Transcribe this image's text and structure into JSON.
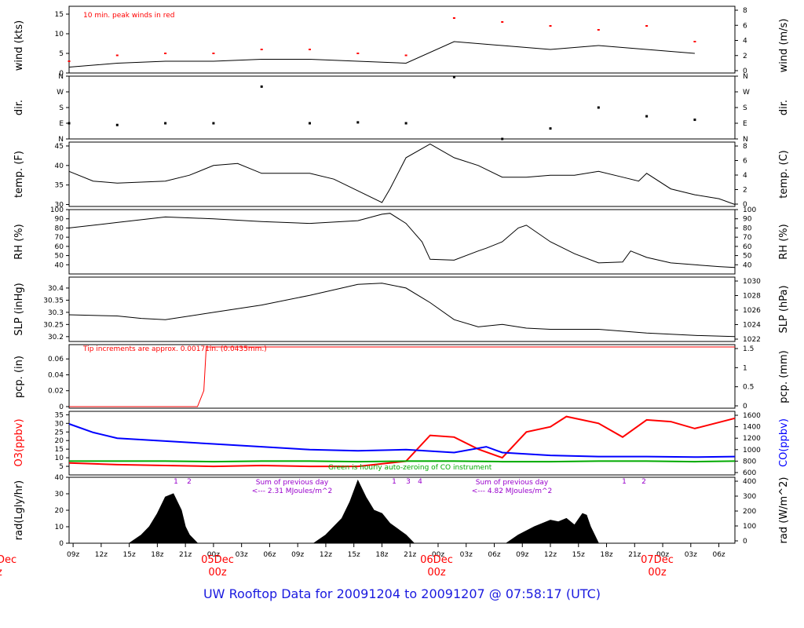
{
  "footer": {
    "title": "UW Rooftop Data for 20091204  to  20091207 @ 07:58:17  (UTC)"
  },
  "chart_data": [
    {
      "type": "line",
      "panel": "wind",
      "ylabel": "wind (kts)",
      "ylabel_right": "wind (m/s)",
      "ylim": [
        0,
        17
      ],
      "yticks": [
        0,
        5,
        10,
        15
      ],
      "yticks_right": [
        "0",
        "2",
        "4",
        "6",
        "8"
      ],
      "annotation": "10 min. peak winds in red",
      "series": [
        {
          "name": "wind",
          "color": "#000000",
          "x": [
            0,
            6,
            12,
            18,
            24,
            30,
            36,
            42,
            48,
            54,
            60,
            66,
            72,
            78
          ],
          "y": [
            1.5,
            2.5,
            3,
            3,
            3.5,
            3.5,
            3,
            2.5,
            8,
            7,
            6,
            7,
            6,
            5
          ]
        },
        {
          "name": "10 min. peak winds",
          "color": "#ff0000",
          "style": "dots",
          "x": [
            0,
            6,
            12,
            18,
            24,
            30,
            36,
            42,
            48,
            54,
            60,
            66,
            72,
            78
          ],
          "y": [
            3,
            4.5,
            5,
            5,
            6,
            6,
            5,
            4.5,
            14,
            13,
            12,
            11,
            12,
            8
          ]
        }
      ]
    },
    {
      "type": "scatter",
      "panel": "dir",
      "ylabel": "dir.",
      "ylabel_right": "dir.",
      "yticks": [
        "N",
        "E",
        "S",
        "W",
        "N"
      ],
      "series": [
        {
          "name": "direction",
          "color": "#000000",
          "x": [
            0,
            6,
            12,
            18,
            24,
            30,
            36,
            42,
            48,
            54,
            60,
            66,
            72,
            78
          ],
          "y": [
            90,
            80,
            90,
            90,
            300,
            90,
            95,
            90,
            355,
            0,
            60,
            180,
            130,
            110
          ]
        }
      ]
    },
    {
      "type": "line",
      "panel": "temp",
      "ylabel": "temp. (F)",
      "ylabel_right": "temp. (C)",
      "ylim": [
        29.5,
        46
      ],
      "yticks": [
        30,
        35,
        40,
        45
      ],
      "yticks_right": [
        "0",
        "2",
        "4",
        "6",
        "8"
      ],
      "series": [
        {
          "name": "temperature",
          "color": "#000000",
          "x": [
            0,
            3,
            6,
            12,
            15,
            18,
            21,
            24,
            30,
            33,
            36,
            39,
            40,
            42,
            45,
            48,
            51,
            54,
            57,
            60,
            63,
            66,
            69,
            71,
            72,
            75,
            78,
            81,
            83
          ],
          "y": [
            38.5,
            36,
            35.5,
            36,
            37.5,
            40,
            40.5,
            38,
            38,
            36.5,
            33.5,
            30.5,
            34,
            42,
            45.5,
            42,
            40,
            37,
            37,
            37.5,
            37.5,
            38.5,
            37,
            36,
            38,
            34,
            32.5,
            31.5,
            30
          ]
        }
      ]
    },
    {
      "type": "line",
      "panel": "RH",
      "ylabel": "RH (%)",
      "ylabel_right": "RH (%)",
      "ylim": [
        30,
        100
      ],
      "yticks": [
        40,
        50,
        60,
        70,
        80,
        90,
        100
      ],
      "series": [
        {
          "name": "relative humidity",
          "color": "#000000",
          "x": [
            0,
            6,
            12,
            18,
            24,
            30,
            36,
            39,
            40,
            42,
            44,
            45,
            48,
            51,
            52,
            54,
            56,
            57,
            60,
            63,
            66,
            69,
            70,
            72,
            75,
            78,
            81,
            83
          ],
          "y": [
            80,
            86,
            92,
            90,
            87,
            85,
            88,
            95,
            96,
            85,
            65,
            46,
            45,
            55,
            58,
            65,
            80,
            83,
            65,
            52,
            42,
            43,
            55,
            48,
            42,
            40,
            38,
            37
          ]
        }
      ]
    },
    {
      "type": "line",
      "panel": "SLP",
      "ylabel": "SLP (inHg)",
      "ylabel_right": "SLP (hPa)",
      "ylim": [
        30.18,
        30.445
      ],
      "yticks": [
        30.2,
        30.25,
        30.3,
        30.35,
        30.4
      ],
      "yticks_right": [
        "1022",
        "1024",
        "1026",
        "1028",
        "1030"
      ],
      "series": [
        {
          "name": "sea level pressure",
          "color": "#000000",
          "x": [
            0,
            6,
            9,
            12,
            18,
            24,
            30,
            36,
            39,
            42,
            45,
            48,
            51,
            54,
            57,
            60,
            66,
            72,
            78,
            83
          ],
          "y": [
            30.29,
            30.285,
            30.275,
            30.27,
            30.3,
            30.33,
            30.37,
            30.415,
            30.42,
            30.4,
            30.34,
            30.27,
            30.24,
            30.25,
            30.235,
            30.23,
            30.23,
            30.215,
            30.205,
            30.2
          ]
        }
      ]
    },
    {
      "type": "line",
      "panel": "precip",
      "ylabel": "pcp. (in)",
      "ylabel_right": "pcp. (mm)",
      "ylim": [
        -0.002,
        0.078
      ],
      "yticks": [
        0,
        0.02,
        0.04,
        0.06
      ],
      "yticks_right": [
        "0",
        "0.5",
        "1",
        "1.5"
      ],
      "annotation": "Tip increments are approx. 0.00171in. (0.0435mm.)",
      "series": [
        {
          "name": "accumulated precipitation",
          "color": "#ff0000",
          "x": [
            0,
            16,
            16.8,
            17.1,
            83
          ],
          "y": [
            0,
            0,
            0.02,
            0.075,
            0.075
          ]
        }
      ]
    },
    {
      "type": "line",
      "panel": "O3-CO",
      "ylabel": "O3(ppbv)",
      "ylabel_right": "CO(ppbv)",
      "ylim": [
        0,
        37
      ],
      "yticks": [
        5,
        10,
        15,
        20,
        25,
        30,
        35
      ],
      "yticks_right": [
        "600",
        "800",
        "1000",
        "1200",
        "1400",
        "1600"
      ],
      "annotation": "Green is hourly auto-zeroing of CO instrument",
      "series": [
        {
          "name": "O3",
          "color": "#ff0000",
          "x": [
            0,
            6,
            12,
            18,
            24,
            30,
            36,
            42,
            45,
            48,
            51,
            54,
            57,
            60,
            62,
            66,
            69,
            72,
            75,
            78,
            83
          ],
          "y": [
            7,
            6,
            5.5,
            5,
            5.5,
            5,
            5,
            8,
            23,
            22,
            15,
            10,
            25,
            28,
            34,
            30,
            22,
            32,
            31,
            27,
            33
          ]
        },
        {
          "name": "CO",
          "color": "#0000ff",
          "x": [
            0,
            3,
            6,
            12,
            18,
            24,
            30,
            36,
            42,
            48,
            52,
            54,
            60,
            66,
            72,
            78,
            83
          ],
          "y": [
            1450,
            1300,
            1200,
            1150,
            1100,
            1050,
            1000,
            980,
            1000,
            950,
            1050,
            950,
            900,
            880,
            880,
            870,
            880
          ]
        },
        {
          "name": "CO auto-zero",
          "color": "#00aa00",
          "x": [
            0,
            6,
            12,
            18,
            24,
            30,
            36,
            42,
            48,
            54,
            60,
            66,
            72,
            78,
            83
          ],
          "y": [
            800,
            800,
            800,
            790,
            800,
            800,
            790,
            800,
            800,
            790,
            790,
            800,
            800,
            790,
            800
          ]
        }
      ]
    },
    {
      "type": "area",
      "panel": "radiation",
      "ylabel": "rad(Lgly/hr)",
      "ylabel_right": "rad (W/m^2)",
      "ylim": [
        0,
        40
      ],
      "yticks": [
        0,
        10,
        20,
        30,
        40
      ],
      "yticks_right": [
        "0",
        "100",
        "200",
        "300",
        "400"
      ],
      "annotations": [
        "Sum of previous day",
        "<--- 2.31 MJoules/m^2",
        "Sum of previous day",
        "<--- 4.82 MJoules/m^2"
      ],
      "markers": [
        "1",
        "2",
        "1",
        "3",
        "4",
        "1",
        "2"
      ],
      "series": [
        {
          "name": "solar radiation",
          "color": "#000000",
          "x": [
            0,
            7.5,
            9,
            10,
            11,
            12,
            13,
            14,
            14.5,
            15,
            16,
            30.5,
            32,
            34,
            35,
            36,
            37,
            38,
            39,
            40,
            42,
            43,
            54.5,
            56,
            58,
            60,
            61,
            62,
            63,
            64,
            64.5,
            65,
            66,
            83
          ],
          "y": [
            0,
            0,
            5,
            10,
            18,
            28,
            30,
            20,
            10,
            5,
            0,
            0,
            5,
            15,
            25,
            38,
            28,
            20,
            18,
            12,
            5,
            0,
            0,
            5,
            10,
            14,
            13,
            15,
            11,
            18,
            17,
            10,
            0,
            0
          ]
        }
      ]
    },
    {
      "type": "table",
      "panel": "time-axis",
      "xticks": [
        "09z",
        "12z",
        "15z",
        "18z",
        "21z",
        "00z",
        "03z",
        "06z",
        "09z",
        "12z",
        "15z",
        "18z",
        "21z",
        "00z",
        "03z",
        "06z",
        "09z",
        "12z",
        "15z",
        "18z",
        "21z",
        "00z",
        "03z",
        "06z"
      ],
      "day_labels": [
        {
          "date": "Dec",
          "time": "z"
        },
        {
          "date": "05Dec",
          "time": "00z"
        },
        {
          "date": "06Dec",
          "time": "00z"
        },
        {
          "date": "07Dec",
          "time": "00z"
        }
      ],
      "colors": {
        "day_label": "#ff0000",
        "o3_label": "#ff0000",
        "co_label": "#0000ff"
      }
    }
  ]
}
